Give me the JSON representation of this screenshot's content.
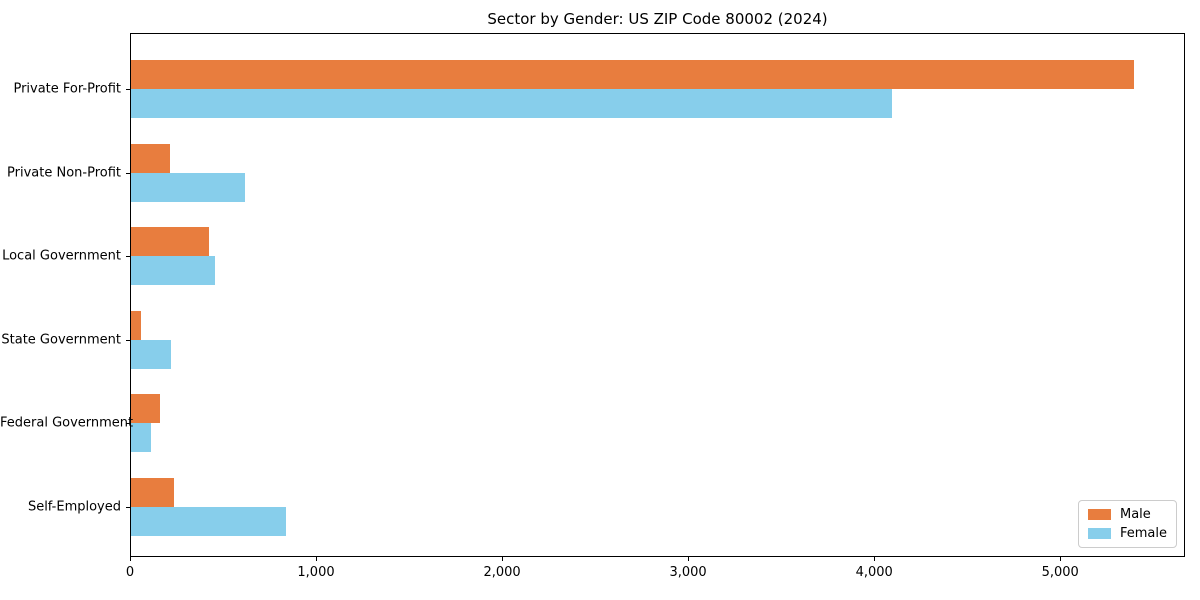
{
  "chart_data": {
    "type": "bar",
    "orientation": "horizontal",
    "title": "Sector by Gender: US ZIP Code 80002 (2024)",
    "categories": [
      "Private For-Profit",
      "Private Non-Profit",
      "Local Government",
      "State Government",
      "Federal Government",
      "Self-Employed"
    ],
    "series": [
      {
        "name": "Male",
        "color": "#E87D3E",
        "values": [
          5390,
          210,
          420,
          55,
          155,
          230
        ]
      },
      {
        "name": "Female",
        "color": "#87CEEB",
        "values": [
          4090,
          610,
          450,
          215,
          105,
          835
        ]
      }
    ],
    "xlabel": "",
    "ylabel": "",
    "xlim": [
      0,
      5660
    ],
    "x_ticks": [
      0,
      1000,
      2000,
      3000,
      4000,
      5000
    ],
    "x_tick_labels": [
      "0",
      "1,000",
      "2,000",
      "3,000",
      "4,000",
      "5,000"
    ],
    "grid": false,
    "legend_position": "lower right",
    "plot_border_color": "#000000",
    "background_color": "#ffffff"
  }
}
